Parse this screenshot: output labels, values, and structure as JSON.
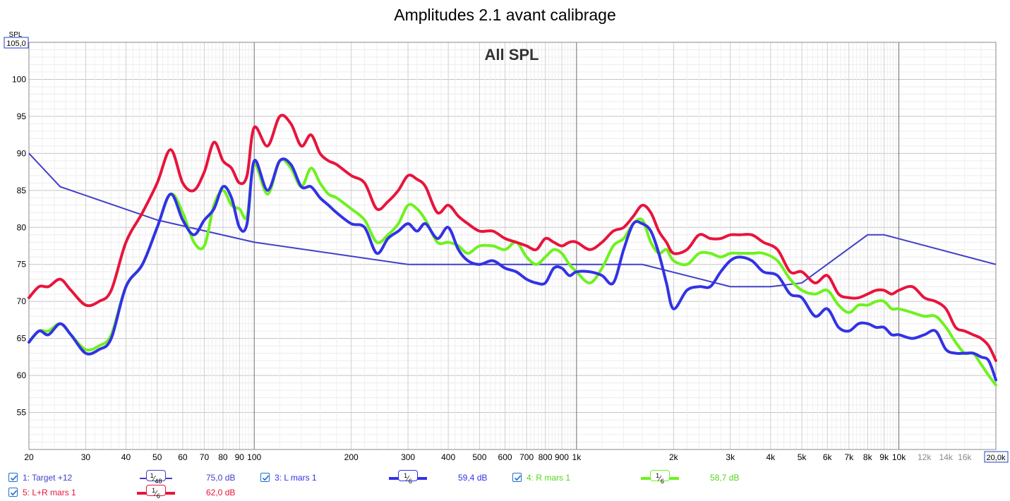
{
  "chart_data": {
    "type": "line",
    "title": "Amplitudes 2.1 avant calibrage",
    "subtitle": "All SPL",
    "ylabel": "SPL",
    "x_scale": "log",
    "xlim": [
      20,
      20000
    ],
    "ylim": [
      50,
      105
    ],
    "grid": true,
    "y_ticks": [
      55,
      60,
      65,
      70,
      75,
      80,
      85,
      90,
      95,
      100
    ],
    "y_top_label": "105,0",
    "x_tick_labels": [
      {
        "f": 20,
        "label": "20"
      },
      {
        "f": 30,
        "label": "30"
      },
      {
        "f": 40,
        "label": "40"
      },
      {
        "f": 50,
        "label": "50"
      },
      {
        "f": 60,
        "label": "60"
      },
      {
        "f": 70,
        "label": "70"
      },
      {
        "f": 80,
        "label": "80"
      },
      {
        "f": 90,
        "label": "90"
      },
      {
        "f": 100,
        "label": "100"
      },
      {
        "f": 200,
        "label": "200"
      },
      {
        "f": 300,
        "label": "300"
      },
      {
        "f": 400,
        "label": "400"
      },
      {
        "f": 500,
        "label": "500"
      },
      {
        "f": 600,
        "label": "600"
      },
      {
        "f": 700,
        "label": "700"
      },
      {
        "f": 800,
        "label": "800"
      },
      {
        "f": 900,
        "label": "900"
      },
      {
        "f": 1000,
        "label": "1k"
      },
      {
        "f": 2000,
        "label": "2k"
      },
      {
        "f": 3000,
        "label": "3k"
      },
      {
        "f": 4000,
        "label": "4k"
      },
      {
        "f": 5000,
        "label": "5k"
      },
      {
        "f": 6000,
        "label": "6k"
      },
      {
        "f": 7000,
        "label": "7k"
      },
      {
        "f": 8000,
        "label": "8k"
      },
      {
        "f": 9000,
        "label": "9k"
      },
      {
        "f": 10000,
        "label": "10k"
      },
      {
        "f": 12000,
        "label": "12k"
      },
      {
        "f": 14000,
        "label": "14k"
      },
      {
        "f": 16000,
        "label": "16k"
      }
    ],
    "x_end_label": "20,0k",
    "series": [
      {
        "name": "1: Target +12",
        "color": "#4040c8",
        "smoothing_n": "48",
        "value_label": "75,0 dB",
        "x": [
          20,
          25,
          50,
          100,
          300,
          1000,
          1600,
          3000,
          4000,
          5000,
          8000,
          9000,
          20000
        ],
        "y": [
          90,
          85.5,
          81,
          78,
          75,
          75,
          75,
          72,
          72,
          72.5,
          79,
          79,
          75
        ]
      },
      {
        "name": "3: L mars 1",
        "color": "#3232e6",
        "smoothing_n": "6",
        "value_label": "59,4 dB",
        "x": [
          20,
          21.5,
          23,
          25,
          27,
          30,
          33,
          36,
          40,
          45,
          50,
          55,
          60,
          65,
          70,
          75,
          80,
          85,
          90,
          95,
          100,
          110,
          120,
          130,
          140,
          150,
          160,
          170,
          180,
          200,
          220,
          240,
          260,
          280,
          300,
          320,
          340,
          370,
          400,
          430,
          460,
          500,
          550,
          600,
          650,
          700,
          750,
          800,
          850,
          900,
          950,
          1000,
          1100,
          1200,
          1300,
          1400,
          1500,
          1600,
          1700,
          1800,
          1900,
          2000,
          2200,
          2400,
          2600,
          2800,
          3000,
          3200,
          3500,
          3800,
          4200,
          4600,
          5000,
          5500,
          6000,
          6500,
          7000,
          7500,
          8000,
          8500,
          9000,
          9500,
          10000,
          11000,
          12000,
          13000,
          14000,
          15000,
          16000,
          17000,
          18000,
          19000,
          20000
        ],
        "y": [
          64.5,
          66,
          65.5,
          67,
          65.5,
          63,
          63.5,
          65,
          72,
          75,
          80,
          84.5,
          81,
          79,
          81,
          82.5,
          85.5,
          84,
          80,
          80.5,
          89,
          85,
          89,
          88.5,
          85.5,
          85.5,
          84,
          83,
          82,
          80.5,
          80,
          76.5,
          78.5,
          79.5,
          80.5,
          79.5,
          80.5,
          78.5,
          80,
          77,
          75.5,
          75,
          75.5,
          74.5,
          74,
          73,
          72.5,
          72.5,
          74.5,
          74.5,
          73.5,
          74,
          74,
          73.5,
          72.5,
          77,
          80.5,
          80.5,
          79.5,
          76.5,
          72.5,
          69,
          71.5,
          72,
          72,
          74,
          75.5,
          76,
          75.5,
          74,
          73.5,
          71,
          70.5,
          68,
          69,
          66.5,
          66,
          67,
          67,
          66.5,
          66.5,
          65.5,
          65.5,
          65,
          65.5,
          66,
          63.5,
          63,
          63,
          63,
          62.5,
          62,
          59.4
        ]
      },
      {
        "name": "4: R mars 1",
        "color": "#6ef21e",
        "smoothing_n": "6",
        "value_label": "58,7 dB",
        "x": [
          20,
          21.5,
          23,
          25,
          27,
          30,
          33,
          36,
          40,
          45,
          50,
          55,
          60,
          65,
          70,
          75,
          80,
          85,
          90,
          95,
          100,
          110,
          120,
          130,
          140,
          150,
          160,
          170,
          180,
          200,
          220,
          240,
          260,
          280,
          300,
          320,
          340,
          370,
          400,
          430,
          460,
          500,
          550,
          600,
          650,
          700,
          750,
          800,
          850,
          900,
          950,
          1000,
          1100,
          1200,
          1300,
          1400,
          1500,
          1600,
          1700,
          1800,
          1900,
          2000,
          2200,
          2400,
          2600,
          2800,
          3000,
          3200,
          3500,
          3800,
          4200,
          4600,
          5000,
          5500,
          6000,
          6500,
          7000,
          7500,
          8000,
          8500,
          9000,
          9500,
          10000,
          11000,
          12000,
          13000,
          14000,
          15000,
          16000,
          17000,
          18000,
          19000,
          20000
        ],
        "y": [
          64.5,
          66,
          66,
          67,
          65.5,
          63.5,
          64,
          65.5,
          72,
          75,
          80,
          84.5,
          82,
          78,
          77.5,
          83,
          85,
          83,
          82.5,
          81.5,
          88.5,
          84.5,
          89,
          88,
          85.5,
          88,
          86,
          84.5,
          84,
          82.5,
          81,
          78,
          79,
          80.5,
          83,
          82.5,
          81,
          78,
          78,
          77.5,
          76.5,
          77.5,
          77.5,
          77,
          78,
          76,
          75,
          76,
          77,
          76.5,
          75,
          74,
          72.5,
          74.5,
          77.5,
          78.5,
          80.5,
          81,
          78,
          76.5,
          77,
          75.5,
          75,
          76.5,
          76.5,
          76,
          76.5,
          76.5,
          76.5,
          76.5,
          75.5,
          73,
          71.5,
          71,
          71.5,
          69.5,
          68.5,
          69.5,
          69.5,
          70,
          70,
          69,
          69,
          68.5,
          68,
          68,
          66.5,
          64.5,
          63,
          63,
          61.5,
          60,
          58.7
        ]
      },
      {
        "name": "5: L+R mars 1",
        "color": "#e8143c",
        "smoothing_n": "6",
        "value_label": "62,0 dB",
        "x": [
          20,
          21.5,
          23,
          25,
          27,
          30,
          33,
          36,
          40,
          45,
          50,
          55,
          60,
          65,
          70,
          75,
          80,
          85,
          90,
          95,
          100,
          110,
          120,
          130,
          140,
          150,
          160,
          170,
          180,
          200,
          220,
          240,
          260,
          280,
          300,
          320,
          340,
          370,
          400,
          430,
          460,
          500,
          550,
          600,
          650,
          700,
          750,
          800,
          850,
          900,
          950,
          1000,
          1100,
          1200,
          1300,
          1400,
          1500,
          1600,
          1700,
          1800,
          1900,
          2000,
          2200,
          2400,
          2600,
          2800,
          3000,
          3200,
          3500,
          3800,
          4200,
          4600,
          5000,
          5500,
          6000,
          6500,
          7000,
          7500,
          8000,
          8500,
          9000,
          9500,
          10000,
          11000,
          12000,
          13000,
          14000,
          15000,
          16000,
          17000,
          18000,
          19000,
          20000
        ],
        "y": [
          70.5,
          72,
          72,
          73,
          71.5,
          69.5,
          70,
          71.5,
          78,
          82,
          86,
          90.5,
          86,
          85,
          87.5,
          91.5,
          89,
          88,
          86,
          87,
          93.5,
          91,
          95,
          94,
          91,
          92.5,
          90,
          89,
          88.5,
          87,
          86,
          82.5,
          83.5,
          85,
          87,
          86.5,
          85.5,
          82,
          83,
          81.5,
          80.5,
          79.5,
          79.5,
          78.5,
          78,
          77.5,
          77,
          78.5,
          78,
          77.5,
          78,
          78,
          77,
          78,
          79.5,
          80,
          81.5,
          83,
          82,
          79.5,
          78,
          76.5,
          77,
          79,
          78.5,
          78.5,
          79,
          79,
          79,
          78,
          77,
          74,
          74,
          72.5,
          73.5,
          71,
          70.5,
          70.5,
          71,
          71.5,
          71.5,
          71,
          71.5,
          72,
          70.5,
          70,
          69,
          66.5,
          66,
          65.5,
          65,
          64,
          62
        ]
      }
    ]
  },
  "legend": [
    {
      "label": "1: Target +12",
      "checked": true
    },
    {
      "label": "3: L mars 1",
      "checked": true
    },
    {
      "label": "4: R mars 1",
      "checked": true
    },
    {
      "label": "5: L+R mars 1",
      "checked": true
    }
  ],
  "colors": {
    "grid": "#d9d9d9",
    "grid_major": "#6e6e6e",
    "axis_label_box": "#1f3fbf"
  }
}
